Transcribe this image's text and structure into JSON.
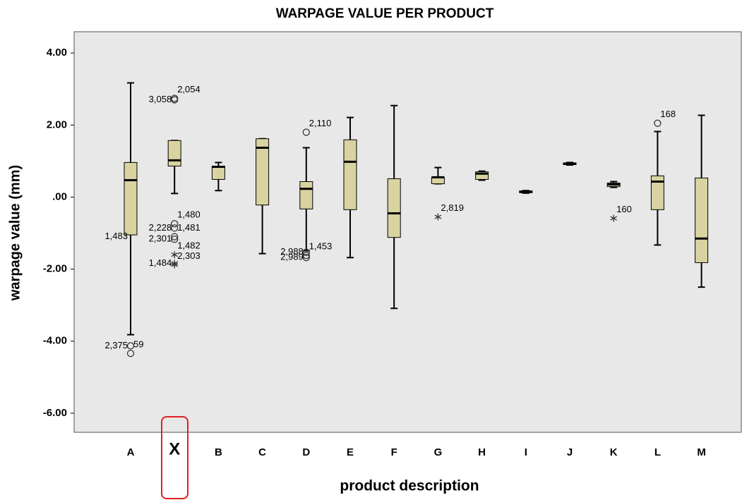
{
  "chart_data": {
    "type": "box",
    "title": "WARPAGE VALUE PER PRODUCT",
    "x_label": "product description",
    "y_label": "warpage value (mm)",
    "categories": [
      "A",
      "X",
      "B",
      "C",
      "D",
      "E",
      "F",
      "G",
      "H",
      "I",
      "J",
      "K",
      "L",
      "M"
    ],
    "color": "#d8d3a0",
    "ylim": [
      -6.53,
      4.59
    ],
    "yticks": [
      {
        "value": 4,
        "label": "4.00"
      },
      {
        "value": 2,
        "label": "2.00"
      },
      {
        "value": 0,
        "label": ".00"
      },
      {
        "value": -2,
        "label": "-2.00"
      },
      {
        "value": -4,
        "label": "-4.00"
      },
      {
        "value": -6,
        "label": "-6.00"
      }
    ],
    "boxes": [
      {
        "whisker_low": -3.82,
        "q1": -1.05,
        "median": 0.47,
        "q3": 0.96,
        "whisker_high": 3.17,
        "outliers": [
          {
            "value": -1.1,
            "label": "1,483",
            "marker": "none"
          },
          {
            "value": -4.13,
            "label": "2,375",
            "marker": "circle"
          },
          {
            "value": -4.34,
            "label": "59",
            "marker": "circle"
          }
        ]
      },
      {
        "whisker_low": 0.1,
        "q1": 0.86,
        "median": 1.02,
        "q3": 1.57,
        "whisker_high": 1.57,
        "outliers": [
          {
            "value": 2.74,
            "label": "2,054",
            "marker": "circle"
          },
          {
            "value": 2.7,
            "label": "3,058",
            "marker": "circle"
          },
          {
            "value": -0.74,
            "label": "1,480",
            "marker": "circle"
          },
          {
            "value": -0.86,
            "label": "2,228",
            "marker": "circle"
          },
          {
            "value": -1.1,
            "label": "1,481",
            "marker": "circle"
          },
          {
            "value": -1.17,
            "label": "2,301",
            "marker": "circle"
          },
          {
            "value": -1.6,
            "label": "1,482",
            "marker": "star"
          },
          {
            "value": -1.84,
            "label": "1,484",
            "marker": "star"
          },
          {
            "value": -1.88,
            "label": "2,303",
            "marker": "star"
          }
        ]
      },
      {
        "whisker_low": 0.18,
        "q1": 0.49,
        "median": 0.84,
        "q3": 0.86,
        "whisker_high": 0.96,
        "outliers": []
      },
      {
        "whisker_low": -1.57,
        "q1": -0.22,
        "median": 1.37,
        "q3": 1.62,
        "whisker_high": 1.62,
        "outliers": []
      },
      {
        "whisker_low": -1.49,
        "q1": -0.33,
        "median": 0.23,
        "q3": 0.43,
        "whisker_high": 1.37,
        "outliers": [
          {
            "value": 1.8,
            "label": "2,110",
            "marker": "circle"
          },
          {
            "value": -1.53,
            "label": "2,988",
            "marker": "circle"
          },
          {
            "value": -1.62,
            "label": "1,453",
            "marker": "circle"
          },
          {
            "value": -1.68,
            "label": "2,989",
            "marker": "circle"
          }
        ]
      },
      {
        "whisker_low": -1.68,
        "q1": -0.35,
        "median": 0.98,
        "q3": 1.59,
        "whisker_high": 2.21,
        "outliers": []
      },
      {
        "whisker_low": -3.09,
        "q1": -1.12,
        "median": -0.45,
        "q3": 0.51,
        "whisker_high": 2.54,
        "outliers": []
      },
      {
        "whisker_low": 0.37,
        "q1": 0.37,
        "median": 0.55,
        "q3": 0.55,
        "whisker_high": 0.82,
        "outliers": [
          {
            "value": -0.55,
            "label": "2,819",
            "marker": "star"
          }
        ]
      },
      {
        "whisker_low": 0.47,
        "q1": 0.49,
        "median": 0.65,
        "q3": 0.7,
        "whisker_high": 0.72,
        "outliers": []
      },
      {
        "whisker_low": 0.11,
        "q1": 0.12,
        "median": 0.15,
        "q3": 0.17,
        "whisker_high": 0.18,
        "outliers": []
      },
      {
        "whisker_low": 0.89,
        "q1": 0.9,
        "median": 0.93,
        "q3": 0.95,
        "whisker_high": 0.96,
        "outliers": []
      },
      {
        "whisker_low": 0.27,
        "q1": 0.29,
        "median": 0.35,
        "q3": 0.39,
        "whisker_high": 0.43,
        "outliers": [
          {
            "value": -0.59,
            "label": "160",
            "marker": "star"
          }
        ]
      },
      {
        "whisker_low": -1.33,
        "q1": -0.35,
        "median": 0.43,
        "q3": 0.59,
        "whisker_high": 1.82,
        "outliers": [
          {
            "value": 2.05,
            "label": "168",
            "marker": "circle"
          }
        ]
      },
      {
        "whisker_low": -2.5,
        "q1": -1.82,
        "median": -1.15,
        "q3": 0.53,
        "whisker_high": 2.27,
        "outliers": []
      }
    ]
  }
}
